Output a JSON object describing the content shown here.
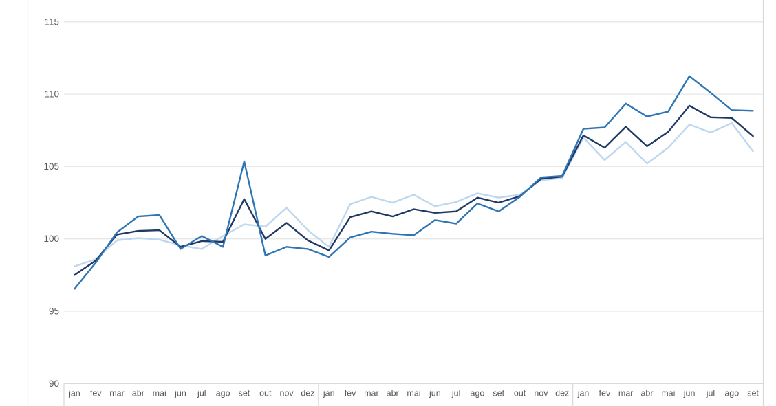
{
  "chart_data": {
    "type": "line",
    "title": "",
    "legend": "none",
    "grid": true,
    "ylim": [
      90,
      115
    ],
    "yticks": [
      90,
      95,
      100,
      105,
      110,
      115
    ],
    "year_group_sizes": [
      12,
      12,
      9
    ],
    "categories": [
      "jan",
      "fev",
      "mar",
      "abr",
      "mai",
      "jun",
      "jul",
      "ago",
      "set",
      "out",
      "nov",
      "dez",
      "jan",
      "fev",
      "mar",
      "abr",
      "mai",
      "jun",
      "jul",
      "ago",
      "set",
      "out",
      "nov",
      "dez",
      "jan",
      "fev",
      "mar",
      "abr",
      "mai",
      "jun",
      "jul",
      "ago",
      "set"
    ],
    "series": [
      {
        "name": "light-blue-series",
        "color": "#bdd7ee",
        "values": [
          98.1,
          98.6,
          99.9,
          100.05,
          99.95,
          99.55,
          99.3,
          100.2,
          101.0,
          100.85,
          102.15,
          100.6,
          99.45,
          102.4,
          102.9,
          102.5,
          103.05,
          102.25,
          102.55,
          103.15,
          102.85,
          103.05,
          104.05,
          104.2,
          107.0,
          105.45,
          106.7,
          105.2,
          106.3,
          107.9,
          107.35,
          108.0,
          106.05
        ]
      },
      {
        "name": "dark-navy-series",
        "color": "#1f3864",
        "values": [
          97.5,
          98.5,
          100.3,
          100.55,
          100.6,
          99.45,
          99.85,
          99.8,
          102.75,
          100.0,
          101.1,
          99.9,
          99.2,
          101.5,
          101.9,
          101.55,
          102.05,
          101.8,
          101.9,
          102.85,
          102.5,
          102.95,
          104.15,
          104.3,
          107.15,
          106.3,
          107.75,
          106.4,
          107.4,
          109.2,
          108.4,
          108.35,
          107.1
        ]
      },
      {
        "name": "medium-blue-series",
        "color": "#2e75b6",
        "values": [
          96.55,
          98.35,
          100.45,
          101.55,
          101.65,
          99.3,
          100.2,
          99.45,
          105.35,
          98.85,
          99.45,
          99.3,
          98.75,
          100.1,
          100.5,
          100.35,
          100.25,
          101.3,
          101.05,
          102.45,
          101.9,
          102.9,
          104.25,
          104.35,
          107.6,
          107.7,
          109.35,
          108.45,
          108.8,
          111.25,
          110.1,
          108.9,
          108.85
        ]
      }
    ]
  },
  "colors": {
    "background": "#ffffff",
    "gridline": "#e7e7e7",
    "box_border": "#d9d9d9",
    "axis_text": "#595959"
  }
}
